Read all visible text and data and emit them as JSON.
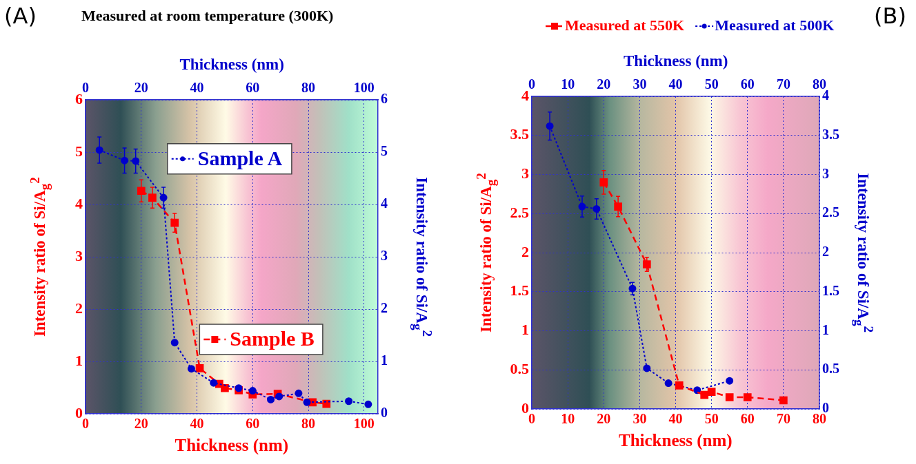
{
  "chart_data": [
    {
      "type": "line",
      "title": "Measured at room temperature (300K)",
      "xlabel": "Thickness (nm)",
      "x2label": "Thickness (nm)",
      "ylabel": "Intensity ratio of Si/A$_{g}$$^{2}$",
      "y2label": "Intensity ratio of Si/A$_{g}$$^{2}$",
      "annotations": [
        "(A)"
      ],
      "xlim": [
        0,
        105
      ],
      "xticks": [
        0,
        20,
        40,
        60,
        80,
        100
      ],
      "x2lim": [
        0,
        105
      ],
      "x2ticks": [
        0,
        20,
        40,
        60,
        80,
        100
      ],
      "ylim": [
        0,
        6
      ],
      "yticks": [
        0,
        1,
        2,
        3,
        4,
        5,
        6
      ],
      "y2lim": [
        0,
        6
      ],
      "y2ticks": [
        0,
        1,
        2,
        3,
        4,
        5,
        6
      ],
      "grid": true,
      "legend": "right",
      "series": [
        {
          "name": "Sample A",
          "color": "#0000cc",
          "axis": "y2",
          "marker": "circle",
          "line_style": "dotted",
          "x": [
            5,
            14,
            18,
            28,
            32,
            38,
            46,
            55,
            60,
            66.5,
            69.5,
            76.5,
            79.5,
            94.5,
            101.5
          ],
          "values": [
            5.04,
            4.84,
            4.83,
            4.13,
            1.36,
            0.86,
            0.59,
            0.49,
            0.44,
            0.27,
            0.33,
            0.39,
            0.22,
            0.24,
            0.18
          ],
          "errors": [
            0.25,
            0.24,
            0.23,
            0.2,
            null,
            null,
            null,
            null,
            null,
            null,
            null,
            null,
            null,
            null,
            null
          ]
        },
        {
          "name": "Sample B",
          "color": "#ff0000",
          "marker": "square",
          "line_style": "dashed",
          "x": [
            20,
            24,
            32,
            41,
            48,
            50,
            55,
            60,
            69,
            81.5,
            86.5
          ],
          "values": [
            4.26,
            4.13,
            3.65,
            0.87,
            0.57,
            0.49,
            0.45,
            0.37,
            0.38,
            0.22,
            0.19
          ],
          "errors": [
            0.21,
            0.2,
            0.18,
            null,
            null,
            null,
            null,
            null,
            null,
            null,
            null
          ]
        }
      ]
    },
    {
      "type": "line",
      "xlabel": "Thickness (nm)",
      "x2label": "Thickness (nm)",
      "ylabel": "Intensity ratio of Si/A$_{g}$$^{2}$",
      "y2label": "Intensity ratio of Si/A$_{g}$$^{2}$",
      "annotations": [
        "(B)"
      ],
      "xlim": [
        0,
        80
      ],
      "xticks": [
        0,
        10,
        20,
        30,
        40,
        50,
        60,
        70,
        80
      ],
      "x2lim": [
        0,
        80
      ],
      "x2ticks": [
        0,
        10,
        20,
        30,
        40,
        50,
        60,
        70,
        80
      ],
      "ylim": [
        0,
        4
      ],
      "yticks": [
        0,
        0.5,
        1,
        1.5,
        2,
        2.5,
        3,
        3.5,
        4
      ],
      "y2lim": [
        0,
        4
      ],
      "y2ticks": [
        0,
        0.5,
        1,
        1.5,
        2,
        2.5,
        3,
        3.5,
        4
      ],
      "grid": true,
      "legend": "top",
      "series": [
        {
          "name": "Measured at 550K",
          "color": "#ff0000",
          "marker": "square",
          "line_style": "dashed",
          "x": [
            20,
            24,
            32,
            41,
            48,
            50,
            55,
            60,
            70
          ],
          "values": [
            2.9,
            2.59,
            1.85,
            0.3,
            0.18,
            0.22,
            0.15,
            0.15,
            0.11
          ],
          "errors": [
            0.15,
            0.13,
            0.09,
            null,
            null,
            null,
            null,
            null,
            null
          ]
        },
        {
          "name": "Measured at 500K",
          "color": "#0000cc",
          "axis": "y2",
          "marker": "circle",
          "line_style": "dotted",
          "x": [
            5,
            14,
            18,
            28,
            32,
            38,
            46,
            55
          ],
          "values": [
            3.62,
            2.59,
            2.56,
            1.54,
            0.52,
            0.33,
            0.24,
            0.36
          ],
          "errors": [
            0.18,
            0.135,
            0.13,
            0.08,
            null,
            null,
            null,
            null
          ]
        }
      ]
    }
  ]
}
